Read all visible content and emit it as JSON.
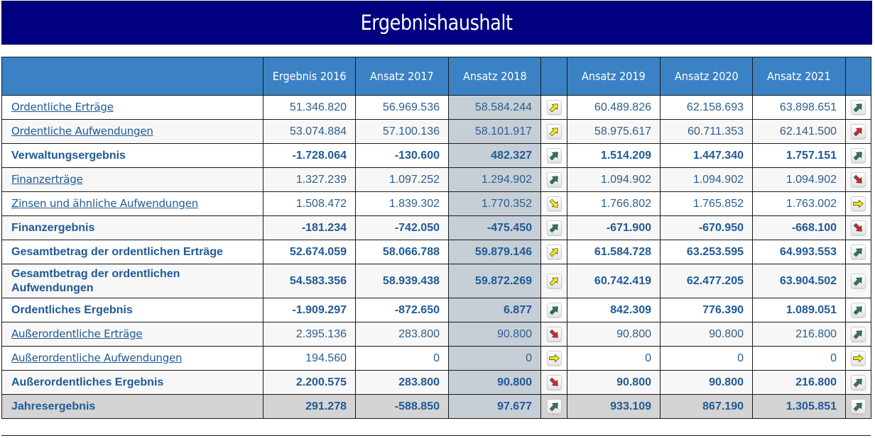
{
  "title": "Ergebnishaushalt",
  "columns": {
    "label": "",
    "c2016": "Ergebnis 2016",
    "c2017": "Ansatz 2017",
    "c2018": "Ansatz 2018",
    "trend1": "",
    "c2019": "Ansatz 2019",
    "c2020": "Ansatz 2020",
    "c2021": "Ansatz 2021",
    "trend2": ""
  },
  "colors": {
    "title_bg": "#000080",
    "header_bg": "#3b82c4",
    "text": "#1f5a96",
    "highlight_2018": "#c6ced6",
    "total_row": "#d4d4d4",
    "trend_green": "#2e7d4f",
    "trend_yellow": "#f5f000",
    "trend_red": "#d42a2a"
  },
  "rows": [
    {
      "label": "Ordentliche Erträge",
      "link": true,
      "bold": false,
      "v2016": "51.346.820",
      "v2017": "56.969.536",
      "v2018": "58.584.244",
      "trend1": {
        "color": "yellow",
        "dir": "up"
      },
      "v2019": "60.489.826",
      "v2020": "62.158.693",
      "v2021": "63.898.651",
      "trend2": {
        "color": "green",
        "dir": "up"
      }
    },
    {
      "label": "Ordentliche Aufwendungen",
      "link": true,
      "bold": false,
      "v2016": "53.074.884",
      "v2017": "57.100.136",
      "v2018": "58.101.917",
      "trend1": {
        "color": "yellow",
        "dir": "up"
      },
      "v2019": "58.975.617",
      "v2020": "60.711.353",
      "v2021": "62.141.500",
      "trend2": {
        "color": "red",
        "dir": "up"
      }
    },
    {
      "label": "Verwaltungsergebnis",
      "link": false,
      "bold": true,
      "v2016": "-1.728.064",
      "v2017": "-130.600",
      "v2018": "482.327",
      "trend1": {
        "color": "green",
        "dir": "up"
      },
      "v2019": "1.514.209",
      "v2020": "1.447.340",
      "v2021": "1.757.151",
      "trend2": {
        "color": "green",
        "dir": "up"
      }
    },
    {
      "label": "Finanzerträge",
      "link": true,
      "bold": false,
      "v2016": "1.327.239",
      "v2017": "1.097.252",
      "v2018": "1.294.902",
      "trend1": {
        "color": "green",
        "dir": "up"
      },
      "v2019": "1.094.902",
      "v2020": "1.094.902",
      "v2021": "1.094.902",
      "trend2": {
        "color": "red",
        "dir": "down"
      }
    },
    {
      "label": "Zinsen und ähnliche Aufwendungen",
      "link": true,
      "bold": false,
      "v2016": "1.508.472",
      "v2017": "1.839.302",
      "v2018": "1.770.352",
      "trend1": {
        "color": "yellow",
        "dir": "down"
      },
      "v2019": "1.766.802",
      "v2020": "1.765.852",
      "v2021": "1.763.002",
      "trend2": {
        "color": "yellow",
        "dir": "right"
      }
    },
    {
      "label": "Finanzergebnis",
      "link": false,
      "bold": true,
      "v2016": "-181.234",
      "v2017": "-742.050",
      "v2018": "-475.450",
      "trend1": {
        "color": "green",
        "dir": "up"
      },
      "v2019": "-671.900",
      "v2020": "-670.950",
      "v2021": "-668.100",
      "trend2": {
        "color": "red",
        "dir": "down"
      }
    },
    {
      "label": "Gesamtbetrag der ordentlichen Erträge",
      "link": false,
      "bold": true,
      "v2016": "52.674.059",
      "v2017": "58.066.788",
      "v2018": "59.879.146",
      "trend1": {
        "color": "yellow",
        "dir": "up"
      },
      "v2019": "61.584.728",
      "v2020": "63.253.595",
      "v2021": "64.993.553",
      "trend2": {
        "color": "green",
        "dir": "up"
      }
    },
    {
      "label": "Gesamtbetrag der ordentlichen Aufwendungen",
      "link": false,
      "bold": true,
      "tall": true,
      "v2016": "54.583.356",
      "v2017": "58.939.438",
      "v2018": "59.872.269",
      "trend1": {
        "color": "yellow",
        "dir": "up"
      },
      "v2019": "60.742.419",
      "v2020": "62.477.205",
      "v2021": "63.904.502",
      "trend2": {
        "color": "green",
        "dir": "up"
      }
    },
    {
      "label": "Ordentliches Ergebnis",
      "link": false,
      "bold": true,
      "v2016": "-1.909.297",
      "v2017": "-872.650",
      "v2018": "6.877",
      "trend1": {
        "color": "green",
        "dir": "up"
      },
      "v2019": "842.309",
      "v2020": "776.390",
      "v2021": "1.089.051",
      "trend2": {
        "color": "green",
        "dir": "up"
      }
    },
    {
      "label": "Außerordentliche Erträge",
      "link": true,
      "bold": false,
      "v2016": "2.395.136",
      "v2017": "283.800",
      "v2018": "90.800",
      "trend1": {
        "color": "red",
        "dir": "down"
      },
      "v2019": "90.800",
      "v2020": "90.800",
      "v2021": "216.800",
      "trend2": {
        "color": "green",
        "dir": "up"
      }
    },
    {
      "label": "Außerordentliche Aufwendungen",
      "link": true,
      "bold": false,
      "v2016": "194.560",
      "v2017": "0",
      "v2018": "0",
      "trend1": {
        "color": "yellow",
        "dir": "right"
      },
      "v2019": "0",
      "v2020": "0",
      "v2021": "0",
      "trend2": {
        "color": "yellow",
        "dir": "right"
      }
    },
    {
      "label": "Außerordentliches Ergebnis",
      "link": false,
      "bold": true,
      "v2016": "2.200.575",
      "v2017": "283.800",
      "v2018": "90.800",
      "trend1": {
        "color": "red",
        "dir": "down"
      },
      "v2019": "90.800",
      "v2020": "90.800",
      "v2021": "216.800",
      "trend2": {
        "color": "green",
        "dir": "up"
      }
    },
    {
      "label": "Jahresergebnis",
      "link": false,
      "bold": true,
      "total": true,
      "v2016": "291.278",
      "v2017": "-588.850",
      "v2018": "97.677",
      "trend1": {
        "color": "green",
        "dir": "up"
      },
      "v2019": "933.109",
      "v2020": "867.190",
      "v2021": "1.305.851",
      "trend2": {
        "color": "green",
        "dir": "up"
      }
    }
  ]
}
